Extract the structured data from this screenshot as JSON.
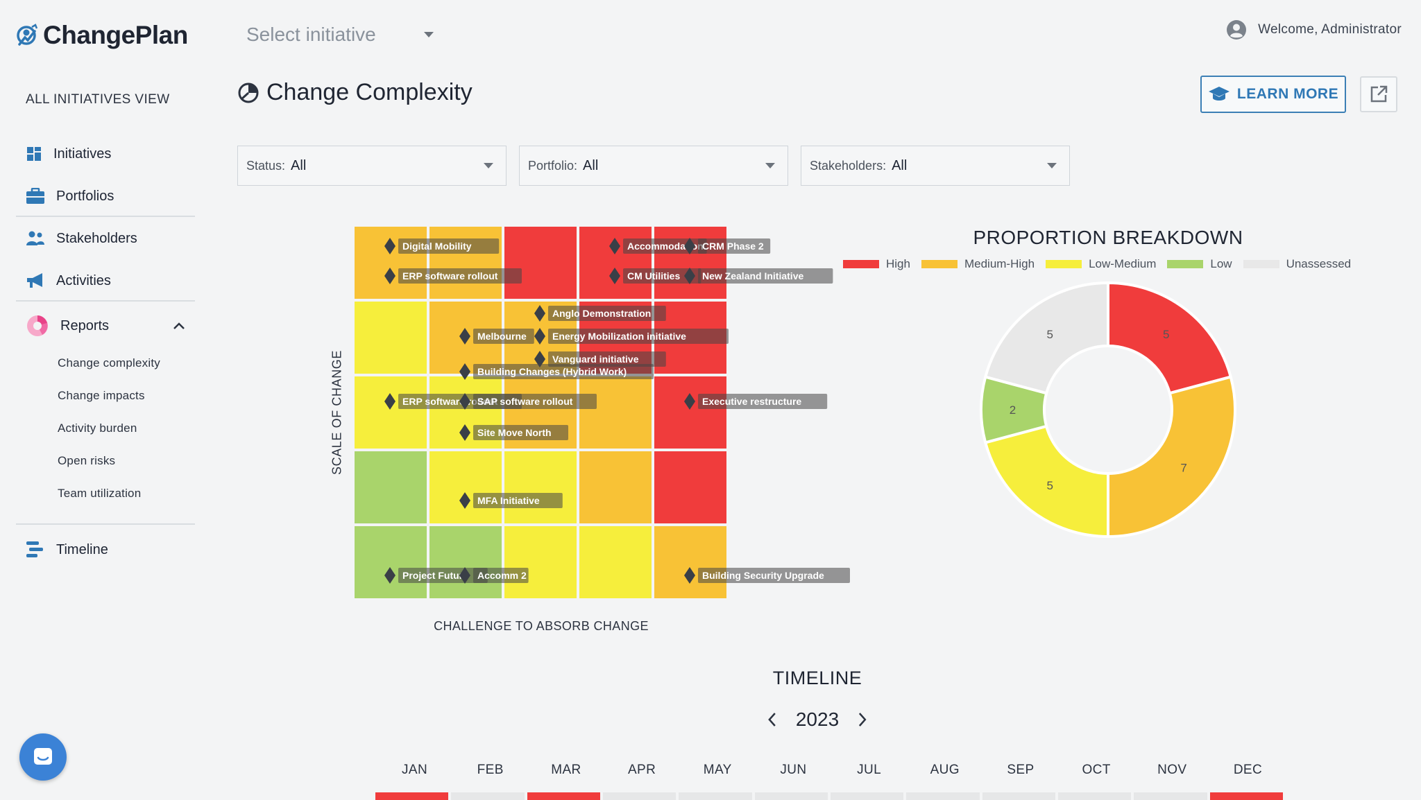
{
  "app": {
    "name": "ChangePlan"
  },
  "header": {
    "initiative_select": {
      "label": "Select initiative"
    },
    "welcome": "Welcome, Administrator"
  },
  "sidebar": {
    "view_label": "ALL INITIATIVES VIEW",
    "items": [
      {
        "label": "Initiatives",
        "icon": "grid-icon"
      },
      {
        "label": "Portfolios",
        "icon": "briefcase-icon"
      },
      {
        "label": "Stakeholders",
        "icon": "people-icon"
      },
      {
        "label": "Activities",
        "icon": "megaphone-icon"
      },
      {
        "label": "Reports",
        "icon": "pie-chart-icon",
        "expanded": true
      },
      {
        "label": "Timeline",
        "icon": "timeline-icon"
      }
    ],
    "report_subitems": [
      "Change complexity",
      "Change impacts",
      "Activity burden",
      "Open risks",
      "Team utilization"
    ]
  },
  "page": {
    "title": "Change Complexity",
    "learn_more": "LEARN MORE"
  },
  "filters": [
    {
      "key": "Status:",
      "value": "All"
    },
    {
      "key": "Portfolio:",
      "value": "All"
    },
    {
      "key": "Stakeholders:",
      "value": "All"
    }
  ],
  "matrix": {
    "y_label": "SCALE OF CHANGE",
    "x_label": "CHALLENGE TO ABSORB CHANGE",
    "colors": {
      "high": "#f03c3c",
      "medium_high": "#f8c236",
      "low_medium": "#f6ee3c",
      "low": "#a9d46b",
      "unassessed": "#e8e8e8"
    },
    "grid": [
      [
        "medium_high",
        "medium_high",
        "high",
        "high",
        "high"
      ],
      [
        "low_medium",
        "medium_high",
        "medium_high",
        "high",
        "high"
      ],
      [
        "low_medium",
        "low_medium",
        "medium_high",
        "medium_high",
        "high"
      ],
      [
        "low",
        "low_medium",
        "low_medium",
        "medium_high",
        "high"
      ],
      [
        "low",
        "low",
        "low_medium",
        "low_medium",
        "medium_high"
      ]
    ],
    "initiatives": [
      {
        "name": "Digital Mobility",
        "col": 0,
        "row": 0,
        "slot": 0
      },
      {
        "name": "ERP software rollout",
        "col": 0,
        "row": 0,
        "slot": 1
      },
      {
        "name": "Accommodation",
        "col": 3,
        "row": 0,
        "slot": 0
      },
      {
        "name": "CRM Phase 2",
        "col": 4,
        "row": 0,
        "slot": 0
      },
      {
        "name": "CM Utilities",
        "col": 3,
        "row": 0,
        "slot": 1
      },
      {
        "name": "New Zealand Initiative",
        "col": 4,
        "row": 0,
        "slot": 1
      },
      {
        "name": "Anglo Demonstration",
        "col": 2,
        "row": 1,
        "slot": 0
      },
      {
        "name": "Melbourne",
        "col": 1,
        "row": 1,
        "slot": 1
      },
      {
        "name": "Energy Mobilization initiative",
        "col": 2,
        "row": 1,
        "slot": 1
      },
      {
        "name": "Vanguard initiative",
        "col": 2,
        "row": 1,
        "slot": 2
      },
      {
        "name": "Building Changes (Hybrid Work)",
        "col": 1,
        "row": 2,
        "slot": 0
      },
      {
        "name": "ERP software rollout",
        "col": 0,
        "row": 2,
        "slot": 1
      },
      {
        "name": "SAP software rollout",
        "col": 1,
        "row": 2,
        "slot": 1
      },
      {
        "name": "Executive restructure",
        "col": 4,
        "row": 2,
        "slot": 1
      },
      {
        "name": "Site Move North",
        "col": 1,
        "row": 2,
        "slot": 2
      },
      {
        "name": "MFA Initiative",
        "col": 1,
        "row": 3,
        "slot": 1
      },
      {
        "name": "Project Future",
        "col": 0,
        "row": 4,
        "slot": 1
      },
      {
        "name": "Accomm 2",
        "col": 1,
        "row": 4,
        "slot": 1
      },
      {
        "name": "Building Security Upgrade",
        "col": 4,
        "row": 4,
        "slot": 1
      }
    ]
  },
  "donut": {
    "title": "PROPORTION BREAKDOWN",
    "legend": [
      {
        "label": "High",
        "color": "#f03c3c"
      },
      {
        "label": "Medium-High",
        "color": "#f8c236"
      },
      {
        "label": "Low-Medium",
        "color": "#f6ee3c"
      },
      {
        "label": "Low",
        "color": "#a9d46b"
      },
      {
        "label": "Unassessed",
        "color": "#e8e8e8"
      }
    ],
    "slices": [
      {
        "label": "High",
        "value": 5,
        "color": "#f03c3c"
      },
      {
        "label": "Medium-High",
        "value": 7,
        "color": "#f8c236"
      },
      {
        "label": "Low-Medium",
        "value": 5,
        "color": "#f6ee3c"
      },
      {
        "label": "Low",
        "value": 2,
        "color": "#a9d46b"
      },
      {
        "label": "Unassessed",
        "value": 5,
        "color": "#e8e8e8"
      }
    ]
  },
  "timeline": {
    "title": "TIMELINE",
    "year": "2023",
    "months": [
      "JAN",
      "FEB",
      "MAR",
      "APR",
      "MAY",
      "JUN",
      "JUL",
      "AUG",
      "SEP",
      "OCT",
      "NOV",
      "DEC"
    ],
    "bar": [
      "high",
      "unassessed",
      "high",
      "unassessed",
      "unassessed",
      "unassessed",
      "unassessed",
      "unassessed",
      "unassessed",
      "unassessed",
      "unassessed",
      "high"
    ]
  }
}
